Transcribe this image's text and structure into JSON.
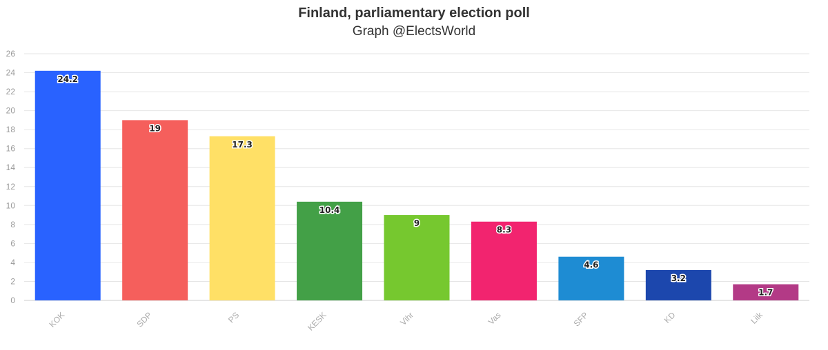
{
  "header": {
    "title": "Finland, parliamentary election poll",
    "subtitle": "Graph @ElectsWorld"
  },
  "chart_data": {
    "type": "bar",
    "title": "Finland, parliamentary election poll",
    "subtitle": "Graph @ElectsWorld",
    "xlabel": "",
    "ylabel": "",
    "ylim": [
      0,
      26
    ],
    "yticks": [
      0,
      2,
      4,
      6,
      8,
      10,
      12,
      14,
      16,
      18,
      20,
      22,
      24,
      26
    ],
    "grid": true,
    "categories": [
      "KOK",
      "SDP",
      "PS",
      "KESK",
      "Vihr",
      "Vas",
      "SFP",
      "KD",
      "Liik"
    ],
    "values": [
      24.2,
      19,
      17.3,
      10.4,
      9,
      8.3,
      4.6,
      3.2,
      1.7
    ],
    "data_labels": [
      "24.2",
      "19",
      "17.3",
      "10.4",
      "9",
      "8.3",
      "4.6",
      "3.2",
      "1.7"
    ],
    "colors": [
      "#2962FF",
      "#F55F5C",
      "#FFE066",
      "#43A047",
      "#76C82F",
      "#F2246F",
      "#1E8CD3",
      "#1C47AD",
      "#B33A86"
    ]
  }
}
